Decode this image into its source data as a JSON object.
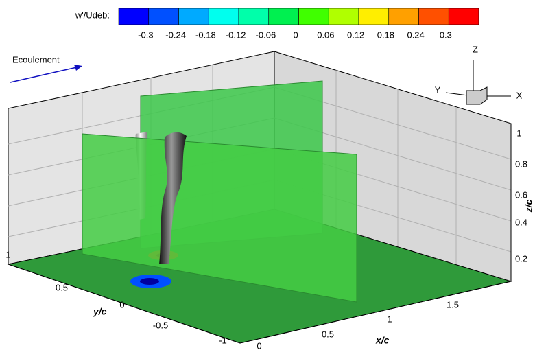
{
  "colorbar": {
    "title": "w'/Udeb:",
    "ticks": [
      "-0.3",
      "-0.24",
      "-0.18",
      "-0.12",
      "-0.06",
      "0",
      "0.06",
      "0.12",
      "0.18",
      "0.24",
      "0.3"
    ],
    "colors": [
      "#0000ff",
      "#0050ff",
      "#00aaff",
      "#00ffee",
      "#00ffaa",
      "#00f050",
      "#40ff00",
      "#b0ff00",
      "#ffee00",
      "#ffa000",
      "#ff5000",
      "#ff0000"
    ]
  },
  "annotation": "Ecoulement",
  "axes": {
    "x": {
      "title": "x/c",
      "ticks": [
        "0",
        "0.5",
        "1",
        "1.5"
      ]
    },
    "y": {
      "title": "y/c",
      "ticks": [
        "1",
        "0.5",
        "0",
        "-0.5",
        "-1"
      ]
    },
    "z": {
      "title": "z/c",
      "ticks": [
        "1",
        "0.8",
        "0.6",
        "0.4",
        "0.2"
      ]
    }
  },
  "triad": {
    "x": "X",
    "y": "Y",
    "z": "Z"
  }
}
